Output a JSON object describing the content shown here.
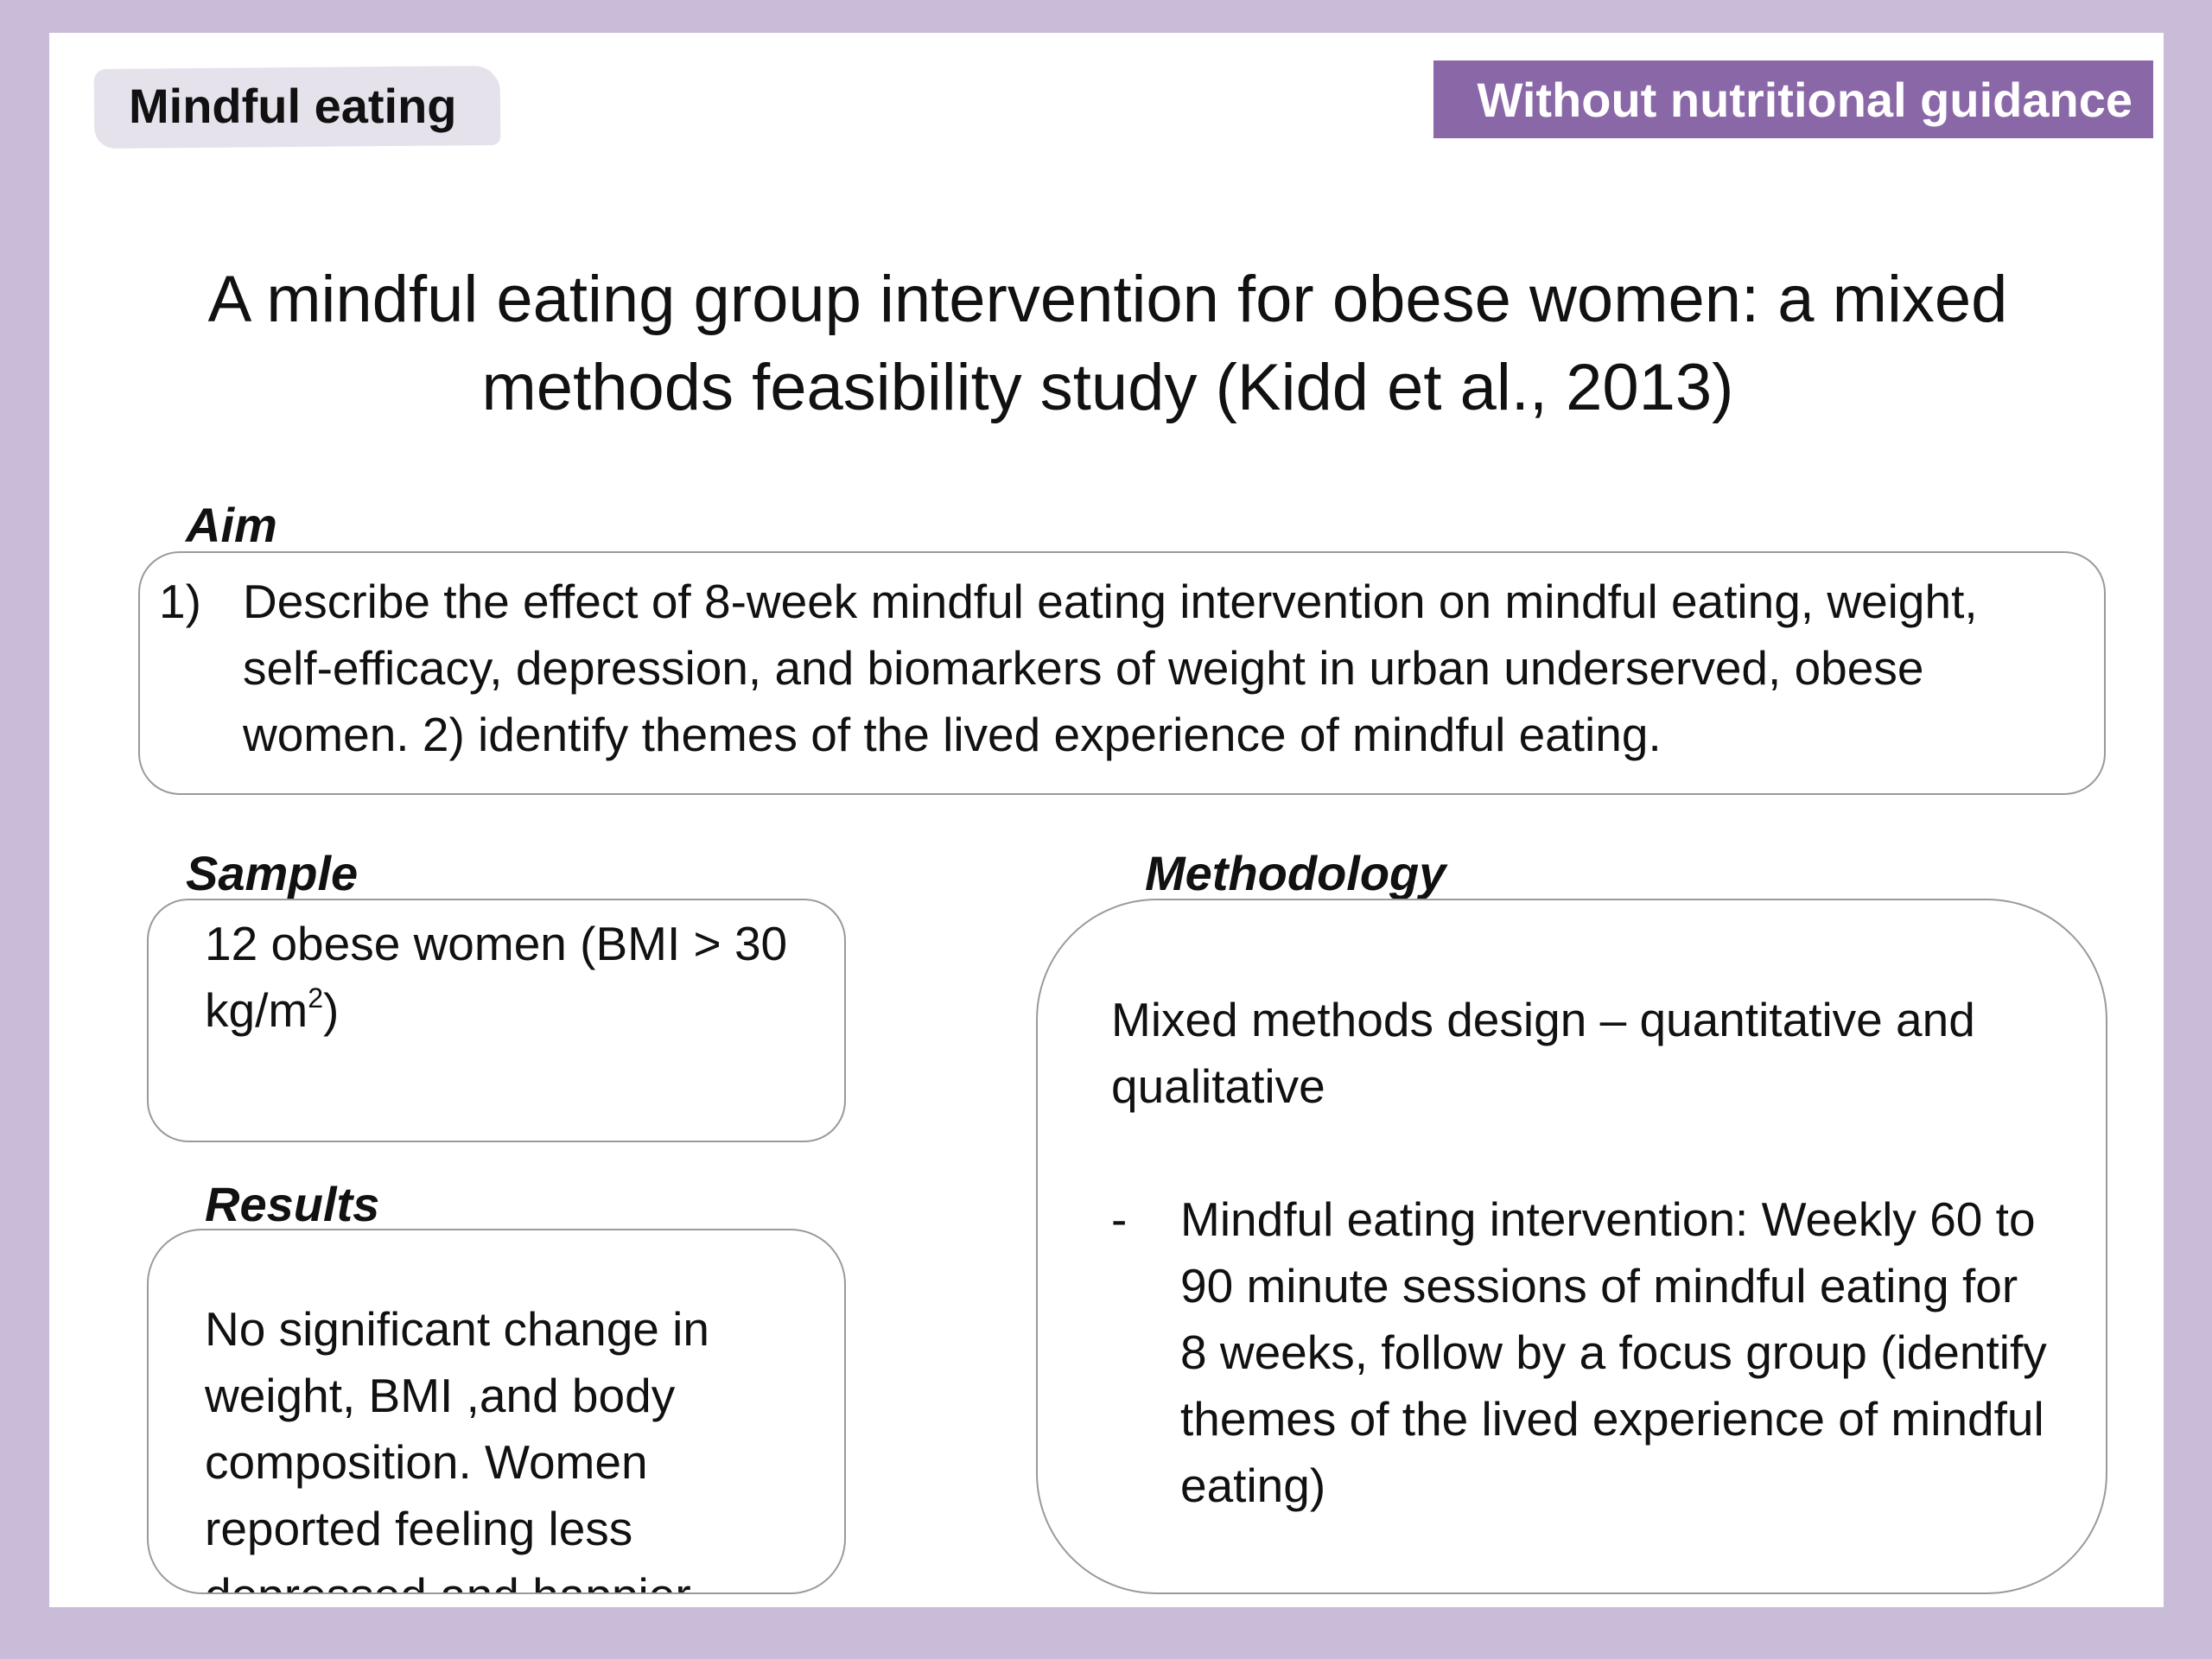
{
  "tags": {
    "left": "Mindful eating",
    "right": "Without nutritional guidance"
  },
  "title": "A mindful eating group intervention for obese women: a mixed methods feasibility study (Kidd et al., 2013)",
  "aim": {
    "heading": "Aim",
    "number": "1)",
    "text": "Describe the effect of  8-week mindful eating intervention on mindful eating, weight, self-efficacy, depression, and biomarkers of weight in urban underserved, obese women.   2) identify themes of the lived experience of mindful eating."
  },
  "sample": {
    "heading": "Sample",
    "text_before": "12 obese women (BMI > 30 kg/m",
    "superscript": "2",
    "text_after": ")"
  },
  "results": {
    "heading": "Results",
    "text": "No significant change in weight, BMI ,and body composition. Women reported feeling less depressed and happier"
  },
  "methodology": {
    "heading": "Methodology",
    "design": "Mixed methods design – quantitative and qualitative",
    "bullet_marker": "-",
    "bullet_text": "Mindful eating intervention: Weekly 60 to 90 minute sessions of mindful eating for 8 weeks, follow by a focus group (identify themes of the lived experience of mindful eating)"
  }
}
